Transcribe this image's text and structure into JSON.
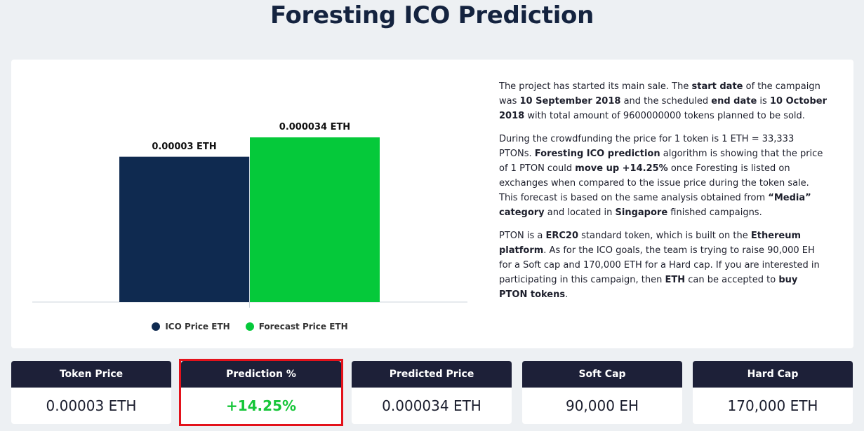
{
  "page": {
    "title": "Foresting ICO Prediction"
  },
  "description": {
    "p1": [
      {
        "t": "The project has started its main sale. The ",
        "b": false
      },
      {
        "t": "start date",
        "b": true
      },
      {
        "t": " of the campaign was ",
        "b": false
      },
      {
        "t": "10 September 2018",
        "b": true
      },
      {
        "t": " and the scheduled ",
        "b": false
      },
      {
        "t": "end date",
        "b": true
      },
      {
        "t": " is ",
        "b": false
      },
      {
        "t": "10 October 2018",
        "b": true
      },
      {
        "t": " with total amount of 9600000000 tokens planned to be sold.",
        "b": false
      }
    ],
    "p2": [
      {
        "t": "During the crowdfunding the price for 1 token is 1 ETH = 33,333 PTONs. ",
        "b": false
      },
      {
        "t": "Foresting ICO prediction",
        "b": true
      },
      {
        "t": " algorithm is showing that the price of 1 PTON could ",
        "b": false
      },
      {
        "t": "move up +14.25%",
        "b": true
      },
      {
        "t": " once Foresting is listed on exchanges when compared to the issue price during the token sale. This forecast is based on the same analysis obtained from ",
        "b": false
      },
      {
        "t": "“Media” category",
        "b": true
      },
      {
        "t": " and located in ",
        "b": false
      },
      {
        "t": "Singapore",
        "b": true
      },
      {
        "t": " finished campaigns.",
        "b": false
      }
    ],
    "p3": [
      {
        "t": "PTON is a ",
        "b": false
      },
      {
        "t": "ERC20",
        "b": true
      },
      {
        "t": " standard token, which is built on the ",
        "b": false
      },
      {
        "t": "Ethereum platform",
        "b": true
      },
      {
        "t": ". As for the ICO goals, the team is trying to raise 90,000 EH for a Soft cap and 170,000 ETH for a Hard cap. If you are interested in participating in this campaign, then ",
        "b": false
      },
      {
        "t": "ETH",
        "b": true
      },
      {
        "t": " can be accepted to ",
        "b": false
      },
      {
        "t": "buy PTON tokens",
        "b": true
      },
      {
        "t": ".",
        "b": false
      }
    ]
  },
  "chart_data": {
    "type": "bar",
    "categories": [
      "ICO Price ETH",
      "Forecast Price ETH"
    ],
    "values": [
      3e-05,
      3.4e-05
    ],
    "data_labels": [
      "0.00003 ETH",
      "0.000034 ETH"
    ],
    "colors": [
      "#0f2a50",
      "#05c93a"
    ],
    "ylim": [
      0,
      4.08e-05
    ],
    "legend": "bottom",
    "grid": false
  },
  "stats": [
    {
      "label": "Token Price",
      "value": "0.00003 ETH"
    },
    {
      "label": "Prediction %",
      "value": "+14.25%"
    },
    {
      "label": "Predicted Price",
      "value": "0.000034 ETH"
    },
    {
      "label": "Soft Cap",
      "value": "90,000 EH"
    },
    {
      "label": "Hard Cap",
      "value": "170,000 ETH"
    }
  ],
  "colors": {
    "background": "#edf0f3",
    "title": "#14233f",
    "stat_header": "#1d2038",
    "prediction": "#16c639",
    "highlight": "#e3121b"
  }
}
